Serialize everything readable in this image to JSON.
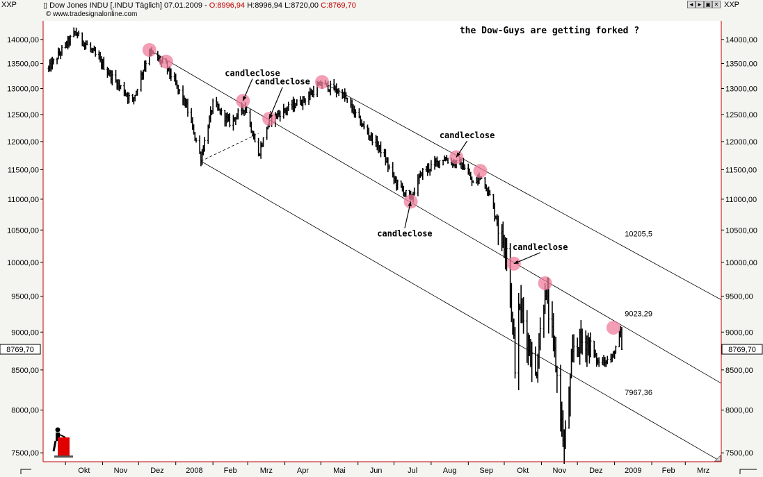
{
  "header": {
    "symbol_left": "XXP",
    "symbol_right": "XXP",
    "chart_title": "Dow Jones INDU [.INDU  Täglich] 07.01.2009",
    "open_label": "O:8996,94",
    "high_label": "H:8996,94",
    "low_label": "L:8720,00",
    "close_label": "C:8769,70",
    "copyright": "© www.tradesignalonline.com"
  },
  "window_buttons": [
    "◄",
    "►",
    "▣",
    "✕"
  ],
  "colors": {
    "axis_red": "#c00000",
    "price_bar": "#000000",
    "touch_marker": "#f07d9c",
    "channel_line": "#000000",
    "background": "#ffffff"
  },
  "chart_data": {
    "type": "ohlc-bar",
    "title": "the Dow-Guys are getting forked ?",
    "y_ticks": [
      7500,
      8000,
      8500,
      9000,
      9500,
      10000,
      10500,
      11000,
      11500,
      12000,
      12500,
      13000,
      13500,
      14000
    ],
    "y_tick_labels": [
      "7500,00",
      "8000,00",
      "8500,00",
      "9000,00",
      "9500,00",
      "10000,00",
      "10500,00",
      "11000,00",
      "11500,00",
      "12000,00",
      "12500,00",
      "13000,00",
      "13500,00",
      "14000,00"
    ],
    "ylim": [
      7400,
      14400
    ],
    "y_scale": "log",
    "grid": false,
    "x_labels": [
      "Okt",
      "Nov",
      "Dez",
      "2008",
      "Feb",
      "Mrz",
      "Apr",
      "Mai",
      "Jun",
      "Jul",
      "Aug",
      "Sep",
      "Okt",
      "Nov",
      "Dez",
      "2009",
      "Feb",
      "Mrz"
    ],
    "x_start": "2007-09-17",
    "x_end": "2009-03-31",
    "last_price_label": "8769,70",
    "waypoints": [
      [
        "2007-09-17",
        13400
      ],
      [
        "2007-10-09",
        14150
      ],
      [
        "2007-10-25",
        13700
      ],
      [
        "2007-11-08",
        13250
      ],
      [
        "2007-11-26",
        12750
      ],
      [
        "2007-12-10",
        13750
      ],
      [
        "2007-12-24",
        13450
      ],
      [
        "2008-01-10",
        12650
      ],
      [
        "2008-01-22",
        11700
      ],
      [
        "2008-02-01",
        12700
      ],
      [
        "2008-02-15",
        12350
      ],
      [
        "2008-02-28",
        12650
      ],
      [
        "2008-03-10",
        11750
      ],
      [
        "2008-03-19",
        12400
      ],
      [
        "2008-04-02",
        12600
      ],
      [
        "2008-04-18",
        12800
      ],
      [
        "2008-05-02",
        13100
      ],
      [
        "2008-05-19",
        12900
      ],
      [
        "2008-06-06",
        12250
      ],
      [
        "2008-06-20",
        11850
      ],
      [
        "2008-07-02",
        11300
      ],
      [
        "2008-07-15",
        11000
      ],
      [
        "2008-07-24",
        11450
      ],
      [
        "2008-08-11",
        11700
      ],
      [
        "2008-08-29",
        11550
      ],
      [
        "2008-09-05",
        11250
      ],
      [
        "2008-09-12",
        11400
      ],
      [
        "2008-09-19",
        11050
      ],
      [
        "2008-09-29",
        10350
      ],
      [
        "2008-10-03",
        10300
      ],
      [
        "2008-10-10",
        8600
      ],
      [
        "2008-10-14",
        9400
      ],
      [
        "2008-10-27",
        8400
      ],
      [
        "2008-11-04",
        9600
      ],
      [
        "2008-11-12",
        8700
      ],
      [
        "2008-11-20",
        7550
      ],
      [
        "2008-11-28",
        8800
      ],
      [
        "2008-12-08",
        8900
      ],
      [
        "2008-12-18",
        8600
      ],
      [
        "2008-12-30",
        8650
      ],
      [
        "2009-01-06",
        9000
      ],
      [
        "2009-01-07",
        8770
      ]
    ],
    "channel": {
      "upper": [
        [
          "2008-05-02",
          13130
        ],
        [
          "2009-03-31",
          9450
        ]
      ],
      "middle": [
        [
          "2007-12-10",
          13780
        ],
        [
          "2009-03-31",
          8330
        ]
      ],
      "lower": [
        [
          "2008-01-22",
          11650
        ],
        [
          "2009-03-31",
          7400
        ]
      ],
      "pivot_segment": [
        [
          "2008-01-22",
          11650
        ],
        [
          "2008-03-10",
          12150
        ]
      ],
      "upper_value_label": "10205,5",
      "middle_value_label": "9023,29",
      "lower_value_label": "7967,36",
      "upper_value_at": "2009-01-06",
      "middle_value_at": "2009-01-06",
      "lower_value_at": "2009-01-06"
    },
    "touch_points": [
      [
        "2007-12-10",
        13780
      ],
      [
        "2007-12-24",
        13540
      ],
      [
        "2008-02-26",
        12760
      ],
      [
        "2008-03-19",
        12420
      ],
      [
        "2008-05-02",
        13130
      ],
      [
        "2008-07-15",
        10960
      ],
      [
        "2008-08-22",
        11720
      ],
      [
        "2008-09-11",
        11480
      ],
      [
        "2008-10-09",
        9980
      ],
      [
        "2008-11-04",
        9690
      ],
      [
        "2008-12-31",
        9060
      ]
    ],
    "annotations": [
      {
        "text": "candleclose",
        "at": [
          "2008-03-05",
          13250
        ],
        "arrow_to": [
          "2008-02-26",
          12760
        ]
      },
      {
        "text": "candleclose",
        "at": [
          "2008-03-30",
          13080
        ],
        "arrow_to": [
          "2008-03-19",
          12420
        ]
      },
      {
        "text": "candleclose",
        "at": [
          "2008-08-31",
          12060
        ],
        "arrow_to": [
          "2008-08-22",
          11720
        ]
      },
      {
        "text": "candleclose",
        "at": [
          "2008-07-10",
          10400
        ],
        "arrow_to": [
          "2008-07-15",
          10960
        ]
      },
      {
        "text": "candleclose",
        "at": [
          "2008-10-31",
          10190
        ],
        "arrow_to": [
          "2008-10-09",
          9980
        ]
      }
    ]
  }
}
